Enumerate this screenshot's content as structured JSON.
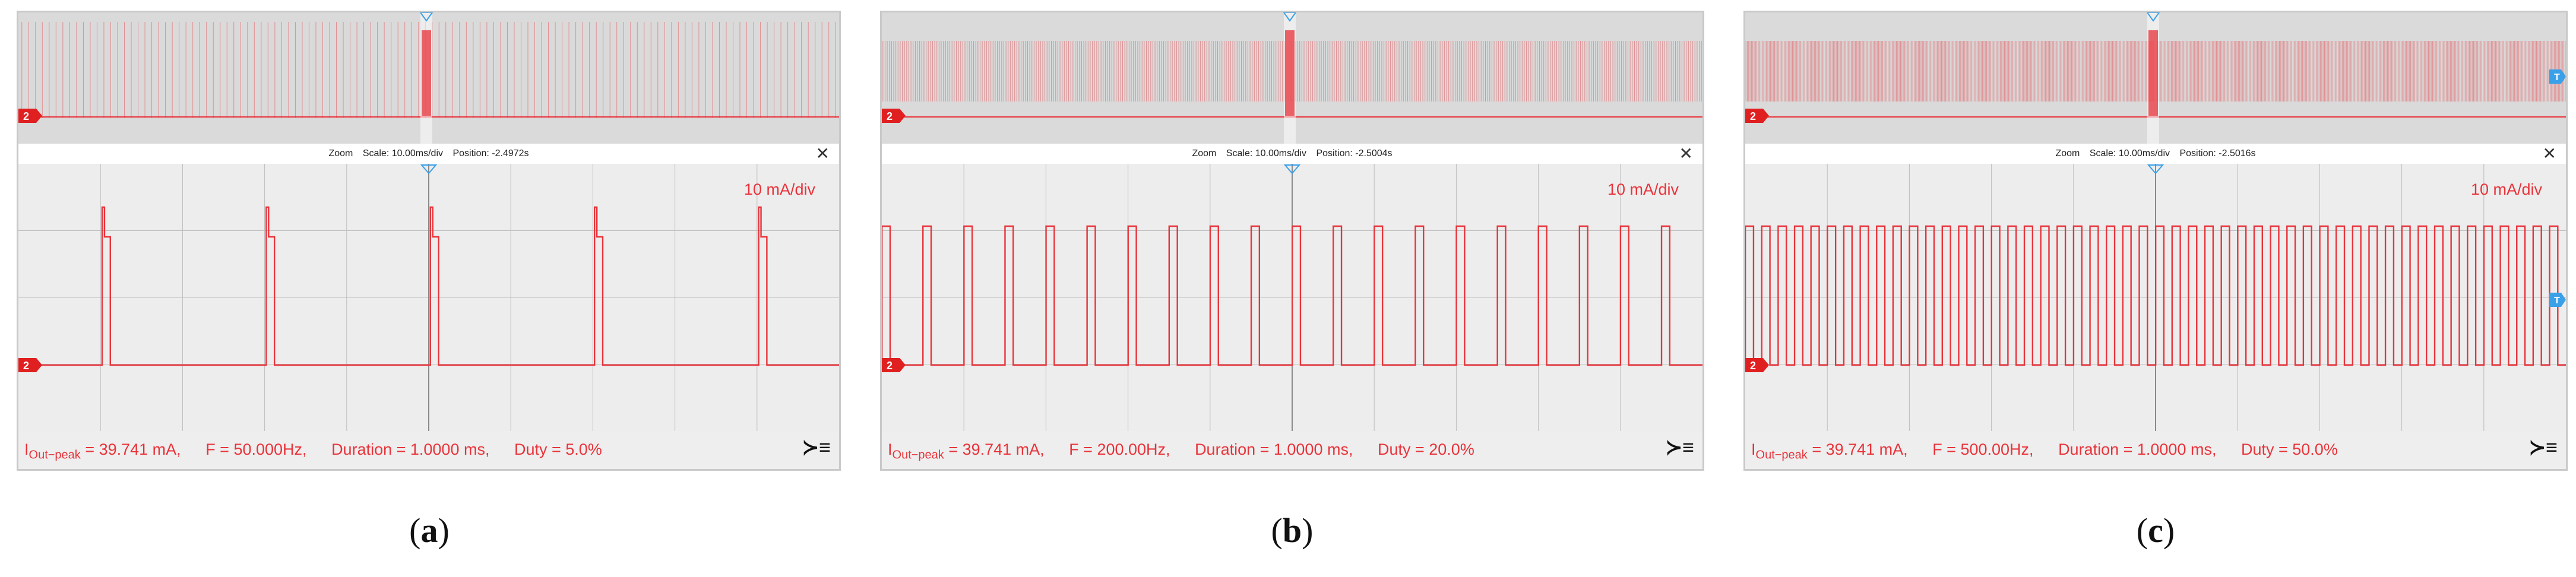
{
  "colors": {
    "trace": "#e8333a",
    "marker": "#3aa0e8",
    "grid": "#bdbdbd"
  },
  "panels": [
    {
      "caption": "a",
      "zoom": {
        "label": "Zoom",
        "scale": "Scale: 10.00ms/div",
        "position": "Position: -2.4972s"
      },
      "vdiv": "10 mA/div",
      "channel": "2",
      "meas": {
        "i_prefix": "I",
        "i_sub": "Out−peak",
        "i_val": " = 39.741 mA,",
        "f": "F = 50.000Hz,",
        "dur": "Duration = 1.0000 ms,",
        "duty": "Duty = 5.0%"
      }
    },
    {
      "caption": "b",
      "zoom": {
        "label": "Zoom",
        "scale": "Scale: 10.00ms/div",
        "position": "Position: -2.5004s"
      },
      "vdiv": "10 mA/div",
      "channel": "2",
      "meas": {
        "i_prefix": "I",
        "i_sub": "Out−peak",
        "i_val": " = 39.741 mA,",
        "f": "F = 200.00Hz,",
        "dur": "Duration = 1.0000 ms,",
        "duty": "Duty = 20.0%"
      }
    },
    {
      "caption": "c",
      "zoom": {
        "label": "Zoom",
        "scale": "Scale: 10.00ms/div",
        "position": "Position: -2.5016s"
      },
      "vdiv": "10 mA/div",
      "channel": "2",
      "trigger": "T",
      "meas": {
        "i_prefix": "I",
        "i_sub": "Out−peak",
        "i_val": " = 39.741 mA,",
        "f": "F = 500.00Hz,",
        "dur": "Duration = 1.0000 ms,",
        "duty": "Duty = 50.0%"
      }
    }
  ],
  "chart_data": [
    {
      "type": "line",
      "title": "(a)",
      "x_unit": "ms",
      "x_range": [
        -50,
        50
      ],
      "ylabel": "10 mA/div",
      "frequency_hz": 50,
      "period_ms": 20,
      "pulse_width_ms": 1.0,
      "duty_percent": 5.0,
      "peak_mA": 39.741,
      "pulse_starts_ms": [
        -40,
        -20,
        0,
        20,
        40
      ]
    },
    {
      "type": "line",
      "title": "(b)",
      "x_unit": "ms",
      "x_range": [
        -50,
        50
      ],
      "ylabel": "10 mA/div",
      "frequency_hz": 200,
      "period_ms": 5,
      "pulse_width_ms": 1.0,
      "duty_percent": 20.0,
      "peak_mA": 39.741,
      "pulse_count_visible": 20
    },
    {
      "type": "line",
      "title": "(c)",
      "x_unit": "ms",
      "x_range": [
        -50,
        50
      ],
      "ylabel": "10 mA/div",
      "frequency_hz": 500,
      "period_ms": 2,
      "pulse_width_ms": 1.0,
      "duty_percent": 50.0,
      "peak_mA": 39.741,
      "pulse_count_visible": 50
    }
  ]
}
